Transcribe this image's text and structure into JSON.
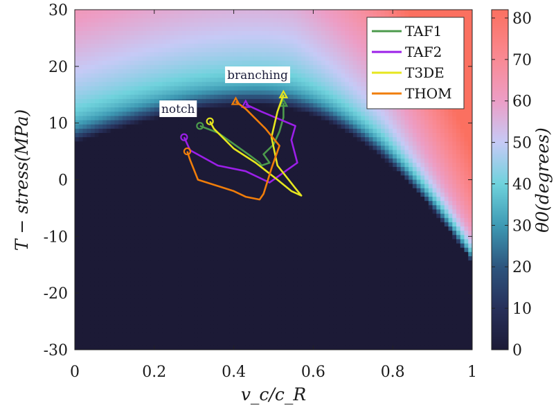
{
  "chart_data": {
    "type": "heatmap",
    "title": "",
    "xlabel": "v_c/c_R",
    "ylabel": "T − stress(MPa)",
    "xlim": [
      0,
      1
    ],
    "ylim": [
      -30,
      30
    ],
    "x_ticks": [
      "0",
      "0.2",
      "0.4",
      "0.6",
      "0.8",
      "1"
    ],
    "y_ticks": [
      "30",
      "20",
      "10",
      "0",
      "-10",
      "-20",
      "-30"
    ],
    "grid": false,
    "legend_position": "top-right",
    "colorbar": {
      "label": "θ0(degrees)",
      "range": [
        0,
        82
      ],
      "ticks": [
        "80",
        "70",
        "60",
        "50",
        "40",
        "30",
        "20",
        "10",
        "0"
      ],
      "colormap": [
        {
          "value": 0,
          "color": "#1c1a36"
        },
        {
          "value": 10,
          "color": "#27305a"
        },
        {
          "value": 20,
          "color": "#2d557e"
        },
        {
          "value": 30,
          "color": "#3e9ab4"
        },
        {
          "value": 40,
          "color": "#6fd2dc"
        },
        {
          "value": 50,
          "color": "#c6caf6"
        },
        {
          "value": 60,
          "color": "#ec9ec6"
        },
        {
          "value": 70,
          "color": "#f98a94"
        },
        {
          "value": 82,
          "color": "#fb7060"
        }
      ]
    },
    "series": [
      {
        "name": "TAF1",
        "color": "#4c9a4c",
        "start_marker": "circle",
        "end_marker": "triangle",
        "x": [
          0.315,
          0.36,
          0.4,
          0.44,
          0.465,
          0.47,
          0.49,
          0.475,
          0.5,
          0.515,
          0.525,
          0.525
        ],
        "y": [
          9.5,
          8.3,
          6.3,
          4.3,
          3.0,
          2.5,
          3.0,
          4.5,
          6.2,
          8.5,
          11.0,
          13.5
        ]
      },
      {
        "name": "TAF2",
        "color": "#9b1fe8",
        "start_marker": "circle",
        "end_marker": "triangle",
        "x": [
          0.275,
          0.29,
          0.36,
          0.43,
          0.475,
          0.49,
          0.53,
          0.56,
          0.545,
          0.555,
          0.47,
          0.43
        ],
        "y": [
          7.5,
          5.2,
          2.5,
          1.5,
          0.0,
          -0.5,
          1.5,
          3.0,
          7.0,
          9.5,
          12.0,
          13.3
        ]
      },
      {
        "name": "T3DE",
        "color": "#e6e61e",
        "start_marker": "circle",
        "end_marker": "triangle",
        "x": [
          0.34,
          0.35,
          0.4,
          0.455,
          0.51,
          0.545,
          0.57,
          0.555,
          0.51,
          0.495,
          0.51,
          0.525
        ],
        "y": [
          10.3,
          9.0,
          5.5,
          3.0,
          0.0,
          -2.0,
          -2.8,
          -1.5,
          2.5,
          7.5,
          12.0,
          15.0
        ]
      },
      {
        "name": "THOM",
        "color": "#f07d0a",
        "start_marker": "circle",
        "end_marker": "triangle",
        "x": [
          0.283,
          0.29,
          0.31,
          0.4,
          0.43,
          0.465,
          0.475,
          0.495,
          0.515,
          0.48,
          0.43,
          0.405
        ],
        "y": [
          5.0,
          3.5,
          0.0,
          -2.0,
          -3.0,
          -3.5,
          -2.5,
          2.0,
          6.0,
          9.0,
          12.5,
          13.8
        ]
      }
    ],
    "annotations": [
      {
        "text": "notch",
        "x": 0.26,
        "y": 12.4
      },
      {
        "text": "branching",
        "x": 0.46,
        "y": 18.4
      }
    ]
  }
}
